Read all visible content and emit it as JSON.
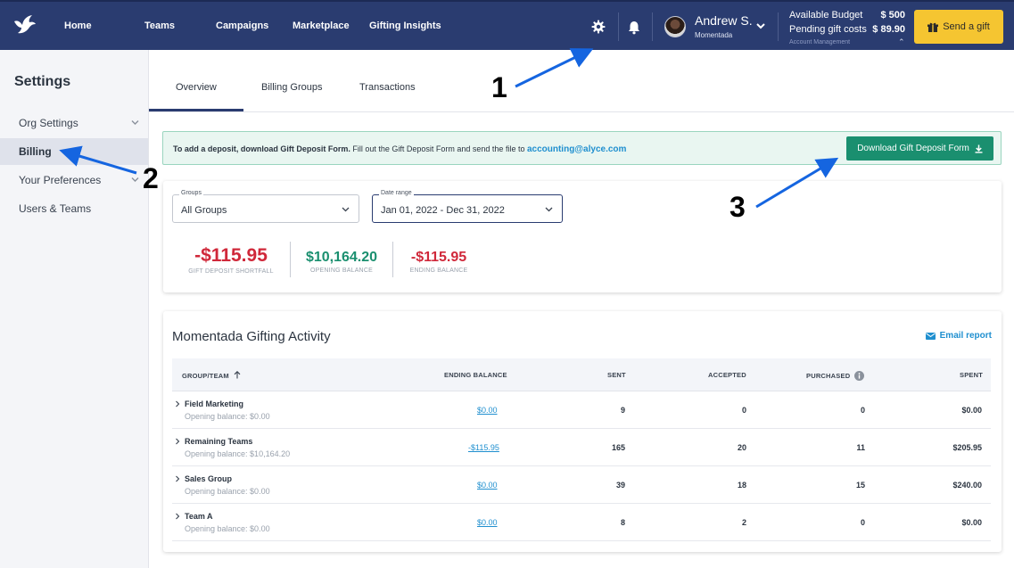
{
  "nav": {
    "items": [
      "Home",
      "Teams",
      "Campaigns",
      "Marketplace",
      "Gifting Insights"
    ],
    "user": {
      "name": "Andrew S.",
      "org": "Momentada"
    },
    "budget": {
      "available_label": "Available Budget",
      "available_value": "$ 500",
      "pending_label": "Pending gift costs",
      "pending_value": "$ 89.90",
      "account_management": "Account Management"
    },
    "send_gift_label": "Send a gift",
    "accent_color": "#2a3c70",
    "button_color": "#f5c531"
  },
  "sidebar": {
    "title": "Settings",
    "items": [
      {
        "label": "Org Settings",
        "active": false,
        "has_chevron": true
      },
      {
        "label": "Billing",
        "active": true,
        "has_chevron": false
      },
      {
        "label": "Your Preferences",
        "active": false,
        "has_chevron": true
      },
      {
        "label": "Users & Teams",
        "active": false,
        "has_chevron": false
      }
    ]
  },
  "tabs": [
    "Overview",
    "Billing Groups",
    "Transactions"
  ],
  "active_tab": "Overview",
  "banner": {
    "bold_text": "To add a deposit, download Gift Deposit Form.",
    "text": "Fill out the Gift Deposit Form and send the file to",
    "email": "accounting@alyce.com",
    "button_label": "Download Gift Deposit Form"
  },
  "filters": {
    "groups": {
      "label": "Groups",
      "value": "All Groups"
    },
    "date_range": {
      "label": "Date range",
      "value": "Jan 01, 2022 - Dec 31, 2022"
    }
  },
  "stats": [
    {
      "value": "-$115.95",
      "label": "GIFT DEPOSIT SHORTFALL",
      "color": "#d0283a"
    },
    {
      "value": "$10,164.20",
      "label": "OPENING BALANCE",
      "color": "#1a8f6f"
    },
    {
      "value": "-$115.95",
      "label": "ENDING BALANCE",
      "color": "#d0283a"
    }
  ],
  "activity": {
    "title": "Momentada Gifting Activity",
    "email_report": "Email report",
    "columns": [
      "GROUP/TEAM",
      "ENDING BALANCE",
      "SENT",
      "ACCEPTED",
      "PURCHASED",
      "SPENT"
    ],
    "rows": [
      {
        "name": "Field Marketing",
        "opening": "Opening balance: $0.00",
        "ending": "$0.00",
        "sent": "9",
        "accepted": "0",
        "purchased": "0",
        "spent": "$0.00"
      },
      {
        "name": "Remaining Teams",
        "opening": "Opening balance: $10,164.20",
        "ending": "-$115.95",
        "sent": "165",
        "accepted": "20",
        "purchased": "11",
        "spent": "$205.95"
      },
      {
        "name": "Sales Group",
        "opening": "Opening balance: $0.00",
        "ending": "$0.00",
        "sent": "39",
        "accepted": "18",
        "purchased": "15",
        "spent": "$240.00"
      },
      {
        "name": "Team A",
        "opening": "Opening balance: $0.00",
        "ending": "$0.00",
        "sent": "8",
        "accepted": "2",
        "purchased": "0",
        "spent": "$0.00"
      }
    ]
  },
  "annotations": [
    "1",
    "2",
    "3"
  ]
}
